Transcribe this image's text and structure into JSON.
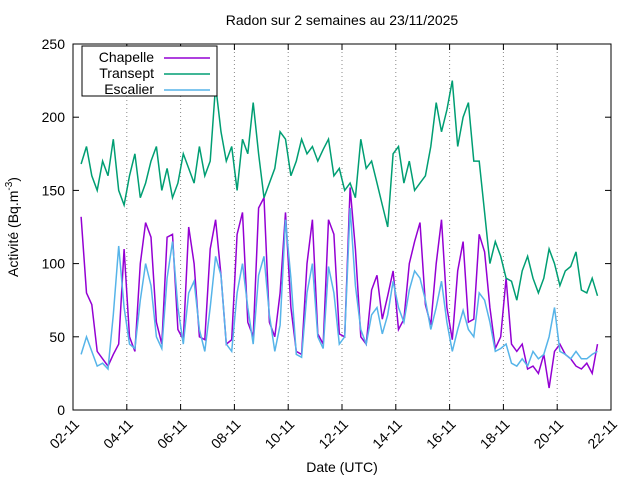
{
  "chart_data": {
    "type": "line",
    "title": "Radon sur 2 semaines au 23/11/2025",
    "xlabel": "Date (UTC)",
    "ylabel_main": "Activité (Bq.m",
    "ylabel_exp": "-3",
    "ylabel_tail": ")",
    "ylim": [
      0,
      250
    ],
    "yticks": [
      0,
      50,
      100,
      150,
      200,
      250
    ],
    "xlim_days": [
      0,
      20
    ],
    "xticks": [
      {
        "day": 0,
        "label": "02-11"
      },
      {
        "day": 2,
        "label": "04-11"
      },
      {
        "day": 4,
        "label": "06-11"
      },
      {
        "day": 6,
        "label": "08-11"
      },
      {
        "day": 8,
        "label": "10-11"
      },
      {
        "day": 10,
        "label": "12-11"
      },
      {
        "day": 12,
        "label": "14-11"
      },
      {
        "day": 14,
        "label": "16-11"
      },
      {
        "day": 16,
        "label": "18-11"
      },
      {
        "day": 18,
        "label": "20-11"
      },
      {
        "day": 20,
        "label": "22-11"
      }
    ],
    "grid": "vertical dotted",
    "legend_position": "top-left",
    "series": [
      {
        "name": "Chapelle",
        "color": "#9400d3",
        "x": [
          0.3,
          0.5,
          0.7,
          0.9,
          1.1,
          1.3,
          1.5,
          1.7,
          1.9,
          2.1,
          2.3,
          2.5,
          2.7,
          2.9,
          3.1,
          3.3,
          3.5,
          3.7,
          3.9,
          4.1,
          4.3,
          4.5,
          4.7,
          4.9,
          5.1,
          5.3,
          5.5,
          5.7,
          5.9,
          6.1,
          6.3,
          6.5,
          6.7,
          6.9,
          7.1,
          7.3,
          7.5,
          7.7,
          7.9,
          8.1,
          8.3,
          8.5,
          8.7,
          8.9,
          9.1,
          9.3,
          9.5,
          9.7,
          9.9,
          10.1,
          10.3,
          10.5,
          10.7,
          10.9,
          11.1,
          11.3,
          11.5,
          11.7,
          11.9,
          12.1,
          12.3,
          12.5,
          12.7,
          12.9,
          13.1,
          13.3,
          13.5,
          13.7,
          13.9,
          14.1,
          14.3,
          14.5,
          14.7,
          14.9,
          15.1,
          15.3,
          15.5,
          15.7,
          15.9,
          16.1,
          16.3,
          16.5,
          16.7,
          16.9,
          17.1,
          17.3,
          17.5,
          17.7,
          17.9,
          18.1,
          18.3,
          18.5,
          18.7,
          18.9,
          19.1,
          19.3,
          19.5
        ],
        "y": [
          132,
          80,
          72,
          40,
          35,
          30,
          38,
          45,
          110,
          50,
          40,
          100,
          128,
          118,
          60,
          45,
          118,
          120,
          55,
          48,
          125,
          100,
          50,
          48,
          110,
          130,
          92,
          45,
          48,
          120,
          135,
          60,
          50,
          138,
          145,
          60,
          50,
          80,
          135,
          70,
          40,
          38,
          100,
          130,
          52,
          45,
          130,
          120,
          52,
          50,
          152,
          110,
          50,
          45,
          82,
          92,
          62,
          78,
          95,
          55,
          62,
          100,
          115,
          128,
          72,
          58,
          100,
          130,
          70,
          48,
          95,
          115,
          60,
          62,
          120,
          108,
          70,
          42,
          50,
          90,
          45,
          40,
          45,
          28,
          30,
          25,
          38,
          15,
          40,
          45,
          38,
          35,
          30,
          28,
          32,
          25,
          45
        ]
      },
      {
        "name": "Transept",
        "color": "#009e73",
        "x": [
          0.3,
          0.5,
          0.7,
          0.9,
          1.1,
          1.3,
          1.5,
          1.7,
          1.9,
          2.1,
          2.3,
          2.5,
          2.7,
          2.9,
          3.1,
          3.3,
          3.5,
          3.7,
          3.9,
          4.1,
          4.3,
          4.5,
          4.7,
          4.9,
          5.1,
          5.3,
          5.5,
          5.7,
          5.9,
          6.1,
          6.3,
          6.5,
          6.7,
          6.9,
          7.1,
          7.3,
          7.5,
          7.7,
          7.9,
          8.1,
          8.3,
          8.5,
          8.7,
          8.9,
          9.1,
          9.3,
          9.5,
          9.7,
          9.9,
          10.1,
          10.3,
          10.5,
          10.7,
          10.9,
          11.1,
          11.3,
          11.5,
          11.7,
          11.9,
          12.1,
          12.3,
          12.5,
          12.7,
          12.9,
          13.1,
          13.3,
          13.5,
          13.7,
          13.9,
          14.1,
          14.3,
          14.5,
          14.7,
          14.9,
          15.1,
          15.3,
          15.5,
          15.7,
          15.9,
          16.1,
          16.3,
          16.5,
          16.7,
          16.9,
          17.1,
          17.3,
          17.5,
          17.7,
          17.9,
          18.1,
          18.3,
          18.5,
          18.7,
          18.9,
          19.1,
          19.3,
          19.5
        ],
        "y": [
          168,
          180,
          160,
          150,
          170,
          160,
          185,
          150,
          140,
          160,
          175,
          145,
          155,
          170,
          180,
          150,
          165,
          145,
          155,
          175,
          165,
          155,
          180,
          160,
          170,
          222,
          190,
          170,
          180,
          150,
          185,
          175,
          210,
          175,
          145,
          155,
          165,
          190,
          185,
          160,
          170,
          185,
          175,
          180,
          170,
          178,
          185,
          160,
          165,
          150,
          155,
          145,
          185,
          165,
          170,
          155,
          140,
          125,
          175,
          180,
          155,
          170,
          150,
          155,
          160,
          180,
          210,
          190,
          205,
          225,
          180,
          200,
          210,
          170,
          170,
          135,
          100,
          115,
          105,
          90,
          88,
          75,
          95,
          105,
          90,
          80,
          90,
          110,
          100,
          85,
          95,
          98,
          108,
          82,
          80,
          90,
          78
        ]
      },
      {
        "name": "Escalier",
        "color": "#56b4e9",
        "x": [
          0.3,
          0.5,
          0.7,
          0.9,
          1.1,
          1.3,
          1.5,
          1.7,
          1.9,
          2.1,
          2.3,
          2.5,
          2.7,
          2.9,
          3.1,
          3.3,
          3.5,
          3.7,
          3.9,
          4.1,
          4.3,
          4.5,
          4.7,
          4.9,
          5.1,
          5.3,
          5.5,
          5.7,
          5.9,
          6.1,
          6.3,
          6.5,
          6.7,
          6.9,
          7.1,
          7.3,
          7.5,
          7.7,
          7.9,
          8.1,
          8.3,
          8.5,
          8.7,
          8.9,
          9.1,
          9.3,
          9.5,
          9.7,
          9.9,
          10.1,
          10.3,
          10.5,
          10.7,
          10.9,
          11.1,
          11.3,
          11.5,
          11.7,
          11.9,
          12.1,
          12.3,
          12.5,
          12.7,
          12.9,
          13.1,
          13.3,
          13.5,
          13.7,
          13.9,
          14.1,
          14.3,
          14.5,
          14.7,
          14.9,
          15.1,
          15.3,
          15.5,
          15.7,
          15.9,
          16.1,
          16.3,
          16.5,
          16.7,
          16.9,
          17.1,
          17.3,
          17.5,
          17.7,
          17.9,
          18.1,
          18.3,
          18.5,
          18.7,
          18.9,
          19.1,
          19.3,
          19.5
        ],
        "y": [
          38,
          50,
          40,
          30,
          32,
          28,
          65,
          112,
          70,
          45,
          42,
          75,
          100,
          85,
          50,
          42,
          90,
          115,
          70,
          45,
          80,
          88,
          55,
          40,
          70,
          105,
          92,
          45,
          40,
          80,
          100,
          70,
          45,
          92,
          105,
          65,
          40,
          58,
          130,
          90,
          38,
          36,
          80,
          100,
          50,
          42,
          98,
          80,
          45,
          50,
          138,
          85,
          55,
          45,
          65,
          70,
          52,
          65,
          88,
          70,
          60,
          82,
          95,
          90,
          75,
          55,
          70,
          88,
          60,
          40,
          55,
          68,
          55,
          50,
          80,
          75,
          60,
          40,
          42,
          45,
          32,
          30,
          35,
          30,
          40,
          35,
          38,
          50,
          70,
          40,
          38,
          35,
          40,
          35,
          35,
          38,
          40
        ]
      }
    ]
  }
}
